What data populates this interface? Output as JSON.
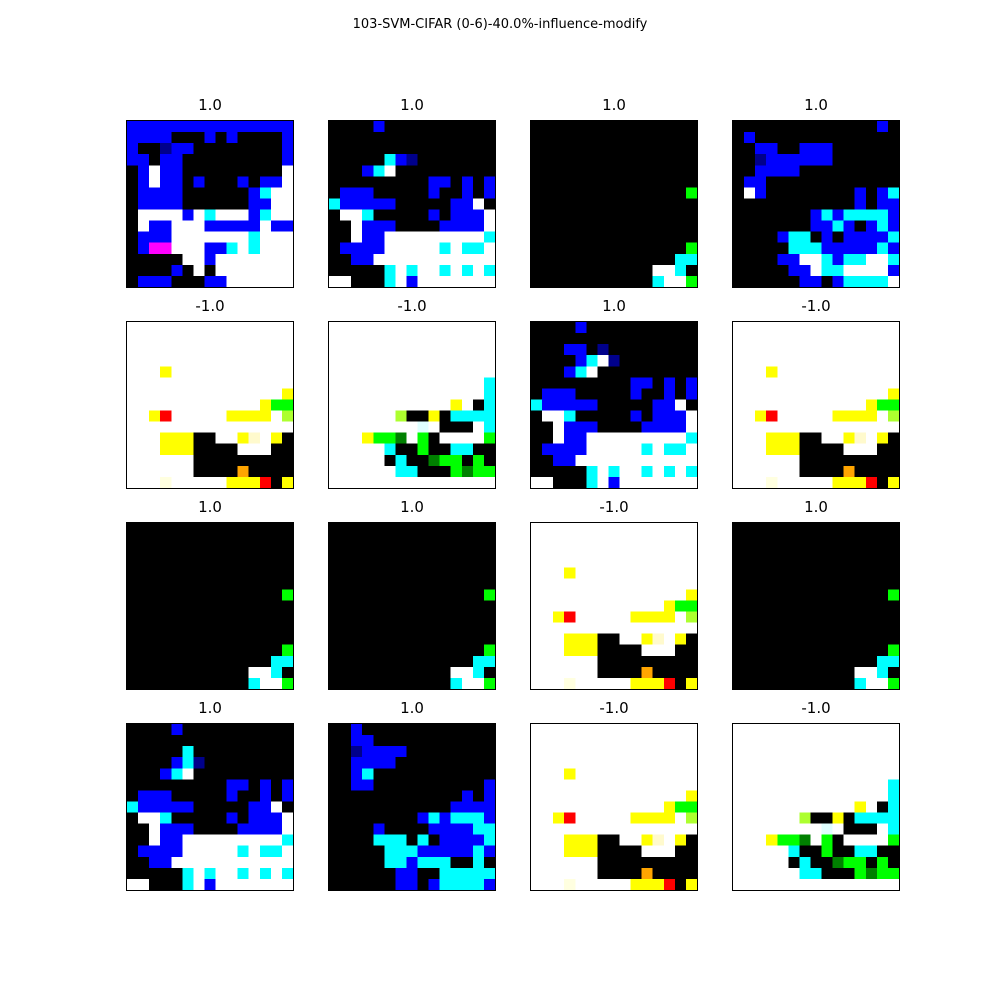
{
  "title": "103-SVM-CIFAR (0-6)-40.0%-influence-modify",
  "chart_data": {
    "type": "heatmap",
    "title": "103-SVM-CIFAR (0-6)-40.0%-influence-modify",
    "grid": false,
    "palette": {
      ".": "#ffffff",
      "K": "#000000",
      "B": "#0000ff",
      "N": "#00008b",
      "C": "#00ffff",
      "W": "#e0ffff",
      "M": "#ff00ff",
      "G": "#00ff00",
      "D": "#008000",
      "Y": "#ffff00",
      "O": "#ffa500",
      "R": "#ff0000",
      "L": "#ffffe0",
      "H": "#adff2f",
      "S": "#fffacd"
    },
    "panels": [
      {
        "label": "1.0",
        "pixels": [
          "BBBBBBBBBBBBBBB",
          "BBBBKKKBKBKKKKB",
          "BKKNBBKKKKKKKKB",
          "BBKBBKKKKKKKKKB",
          "KB.BBKKKKKKKKK.",
          "KB.BBKBKKKBKBB.",
          "KBBBBKKKKKKBC..",
          "KBBBBKKKKKKBB..",
          "K....B.C...BC..",
          "K.BB...BBBBB.BB",
          "KBBB.......C...",
          "KBMM...BBC.C...",
          "KKKKK..B.......",
          "KKKKBK.K.......",
          "KBBBKKKBB......"
        ]
      },
      {
        "label": "1.0",
        "pixels": [
          "KKKKBKKKKKKKKKK",
          "KKKKKKKKKKKKKKK",
          "KKKKKKKKKKKKKKK",
          "KKKKKCBNKKKKKKK",
          "KKKBC.KKKKKKKKK",
          "KKKKKKKKKBBKBKB",
          "KBBBKKKKKBKKBKB",
          "CBBBBBKKKKKBB.K",
          "K..CKKKKKBKBBB.",
          "KK.BBBKKKKBBBB.",
          "KK.BB.........C",
          "KBBBB.....C.CC.",
          "KKBB...........",
          "KKKKKC.C..C.C.C",
          "..KKKC.B......."
        ]
      },
      {
        "label": "1.0",
        "pixels": [
          "KKKKKKKKKKKKKKK",
          "KKKKKKKKKKKKKKK",
          "KKKKKKKKKKKKKKK",
          "KKKKKKKKKKKKKKK",
          "KKKKKKKKKKKKKKK",
          "KKKKKKKKKKKKKKK",
          "KKKKKKKKKKKKKKG",
          "KKKKKKKKKKKKKKK",
          "KKKKKKKKKKKKKKK",
          "KKKKKKKKKKKKKKK",
          "KKKKKKKKKKKKKKK",
          "KKKKKKKKKKKKKKG",
          "KKKKKKKKKKKKKCC",
          "KKKKKKKKKKK..CK",
          "KKKKKKKKKKKC..G"
        ]
      },
      {
        "label": "1.0",
        "pixels": [
          "KKKKKKKKKKKKKBK",
          "KBKKKKKKKKKKKKK",
          "KKBBKKBBBKKKKKK",
          "KKNBBBBBBKKKKKK",
          "KKBBBBKKKKKKKKK",
          "KBBKKKKKKKKKKKK",
          "K.BKKKKKKKKBKBC",
          "KKKKKKKKKKKBKBB",
          "KKKKKKKBCBCCCCB",
          "KKKKKKKBBCBKBCB",
          "KKKKBCCKBKBBBBC",
          "KKKKKCCCBBBBBCB",
          "KKKKBB..CBCC..C",
          "KKKKKBB.CC....B",
          "KKKKKKBBKBCCCC."
        ]
      },
      {
        "label": "-1.0",
        "pixels": [
          "...............",
          "...............",
          "...............",
          "...............",
          "...Y...........",
          "...............",
          "..............Y",
          "............YGG",
          "..YR.....YYYY.H",
          "...............",
          "...YYYKK..YS.YK",
          "...YYYKKKK...KK",
          "......KKKKKKKKK",
          "......KKKKOKKKK",
          "...L.....YYYRKY"
        ]
      },
      {
        "label": "-1.0",
        "pixels": [
          "...............",
          "...............",
          "...............",
          "...............",
          "...............",
          "..............C",
          "..............C",
          "...........Y.KC",
          "......HKKYKCCCC",
          "........W.KKK.C",
          "...YGGD.GK....G",
          ".....CKKGKKCCKK",
          ".....KCKKDGGKGK",
          "......CCKKKGDGG",
          "..............."
        ]
      },
      {
        "label": "1.0",
        "pixels": [
          "KKKKBKKKKKKKKKK",
          "KKKKKKKKKKKKKKK",
          "KKKBBKNKKKKKKKK",
          "KKKKBC.NKKKKKKK",
          "KKKBC.KKKKKKKKK",
          "KKKKKKKKKBBKBKB",
          "KBBBKKKKKBKKBKB",
          "CBBBBBKKKKKBB.K",
          "K..CKKKKKBKBBB.",
          "KK.BBBKKKKBBBB.",
          "KK.BB.........C",
          "KBBBB.....C.CC.",
          "KKBB...........",
          "KKKKKC.C..C.C.C",
          "..KKKC.B......."
        ]
      },
      {
        "label": "-1.0",
        "pixels": [
          "...............",
          "...............",
          "...............",
          "...............",
          "...Y...........",
          "...............",
          "..............Y",
          "............YGG",
          "..YR.....YYYY.H",
          "...............",
          "...YYYKK..YS.YK",
          "...YYYKKKK...KK",
          "......KKKKKKKKK",
          "......KKKKOKKKK",
          "...L.....YYYRKY"
        ]
      },
      {
        "label": "1.0",
        "pixels": [
          "KKKKKKKKKKKKKKK",
          "KKKKKKKKKKKKKKK",
          "KKKKKKKKKKKKKKK",
          "KKKKKKKKKKKKKKK",
          "KKKKKKKKKKKKKKK",
          "KKKKKKKKKKKKKKK",
          "KKKKKKKKKKKKKKG",
          "KKKKKKKKKKKKKKK",
          "KKKKKKKKKKKKKKK",
          "KKKKKKKKKKKKKKK",
          "KKKKKKKKKKKKKKK",
          "KKKKKKKKKKKKKKG",
          "KKKKKKKKKKKKKCC",
          "KKKKKKKKKKK..CK",
          "KKKKKKKKKKKC..G"
        ]
      },
      {
        "label": "1.0",
        "pixels": [
          "KKKKKKKKKKKKKKK",
          "KKKKKKKKKKKKKKK",
          "KKKKKKKKKKKKKKK",
          "KKKKKKKKKKKKKKK",
          "KKKKKKKKKKKKKKK",
          "KKKKKKKKKKKKKKK",
          "KKKKKKKKKKKKKKG",
          "KKKKKKKKKKKKKKK",
          "KKKKKKKKKKKKKKK",
          "KKKKKKKKKKKKKKK",
          "KKKKKKKKKKKKKKK",
          "KKKKKKKKKKKKKKG",
          "KKKKKKKKKKKKKCC",
          "KKKKKKKKKKK..CK",
          "KKKKKKKKKKKC..G"
        ]
      },
      {
        "label": "-1.0",
        "pixels": [
          "...............",
          "...............",
          "...............",
          "...............",
          "...Y...........",
          "...............",
          "..............Y",
          "............YGG",
          "..YR.....YYYY.H",
          "...............",
          "...YYYKK..YS.YK",
          "...YYYKKKK...KK",
          "......KKKKKKKKK",
          "......KKKKOKKKK",
          "...L.....YYYRKY"
        ]
      },
      {
        "label": "1.0",
        "pixels": [
          "KKKKKKKKKKKKKKK",
          "KKKKKKKKKKKKKKK",
          "KKKKKKKKKKKKKKK",
          "KKKKKKKKKKKKKKK",
          "KKKKKKKKKKKKKKK",
          "KKKKKKKKKKKKKKK",
          "KKKKKKKKKKKKKKG",
          "KKKKKKKKKKKKKKK",
          "KKKKKKKKKKKKKKK",
          "KKKKKKKKKKKKKKK",
          "KKKKKKKKKKKKKKK",
          "KKKKKKKKKKKKKKG",
          "KKKKKKKKKKKKKCC",
          "KKKKKKKKKKK..CK",
          "KKKKKKKKKKKC..G"
        ]
      },
      {
        "label": "1.0",
        "pixels": [
          "KKKKBKKKKKKKKKK",
          "KKKKKKKKKKKKKKK",
          "KKKKKCKKKKKKKKK",
          "KKKKBCNKKKKKKKK",
          "KKKBC.KKKKKKKKK",
          "KKKKKKKKKBBKBKB",
          "KBBBKKKKKBKKBKB",
          "CBBBBBKKKKKBB.K",
          "K..CKKKKKBKBBB.",
          "KK.BBBKKKKBBBB.",
          "KK.BB.........C",
          "KBBBB.....C.CC.",
          "KKBB...........",
          "KKKKKC.C..C.C.C",
          "..KKKC.B......."
        ]
      },
      {
        "label": "1.0",
        "pixels": [
          "KKBKKKKKKKKKKKK",
          "KKBBKKKKKKKKKKK",
          "KKNBBBBKKKKKKKK",
          "KKBBBBKKKKKKKKK",
          "KKBCKKKKKKKKKKK",
          "KKBBKKKKKKKKKKB",
          "KKKKKKKKKKKKBKB",
          "KKKKKKKKKKKBBBB",
          "KKKKKKKKBCBCCCB",
          "KKKKBKKKKBBBBCC",
          "KKKKCCCKCKBBBBC",
          "KKKKKCCCBBBBBCB",
          "KKKKKCCBCCCKKCK",
          "KKKKKKBBKKCCCCC",
          "KKKKKKBBKBCCCCB"
        ]
      },
      {
        "label": "-1.0",
        "pixels": [
          "...............",
          "...............",
          "...............",
          "...............",
          "...Y...........",
          "...............",
          "..............Y",
          "............YGG",
          "..YR.....YYYY.H",
          "...............",
          "...YYYKK..YS.YK",
          "...YYYKKKK...KK",
          "......KKKKKKKKK",
          "......KKKKOKKKK",
          "...L.....YYYRKY"
        ]
      },
      {
        "label": "-1.0",
        "pixels": [
          "...............",
          "...............",
          "...............",
          "...............",
          "...............",
          "..............C",
          "..............C",
          "...........Y.KC",
          "......HKKYKCCCC",
          "........W.KKK.C",
          "...YGGD.GK....G",
          ".....CKKGKKCCKK",
          ".....KCKKDGGKGK",
          "......CCKKKGDGG",
          "..............."
        ]
      }
    ]
  }
}
